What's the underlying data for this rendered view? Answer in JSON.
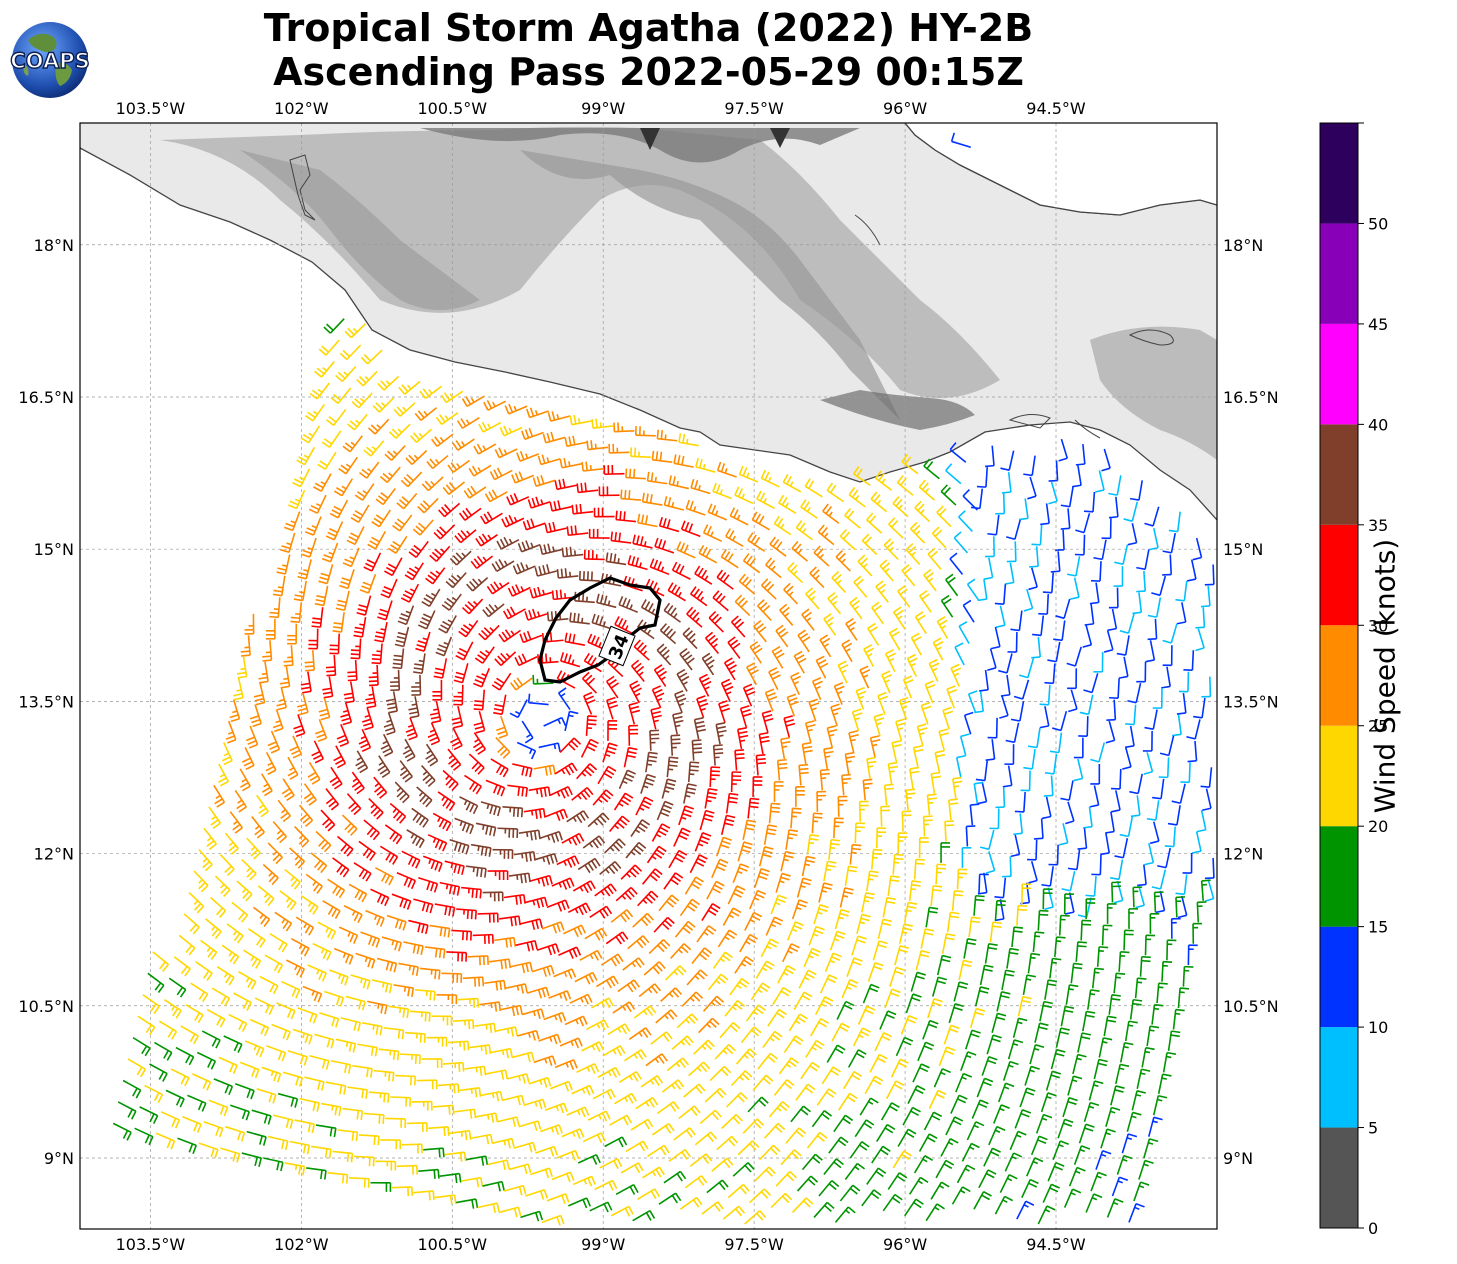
{
  "title": {
    "line1": "Tropical Storm Agatha (2022) HY-2B",
    "line2": "Ascending Pass 2022-05-29 00:15Z"
  },
  "logo": {
    "text": "COAPS"
  },
  "map": {
    "lon_range": [
      -104.2,
      -92.9
    ],
    "lat_range": [
      8.3,
      19.2
    ],
    "lon_ticks": [
      "103.5°W",
      "102°W",
      "100.5°W",
      "99°W",
      "97.5°W",
      "96°W",
      "94.5°W"
    ],
    "lon_tick_values": [
      -103.5,
      -102,
      -100.5,
      -99,
      -97.5,
      -96,
      -94.5
    ],
    "lat_ticks": [
      "9°N",
      "10.5°N",
      "12°N",
      "13.5°N",
      "15°N",
      "16.5°N",
      "18°N"
    ],
    "lat_tick_values": [
      9,
      10.5,
      12,
      13.5,
      15,
      16.5,
      18
    ],
    "grid": true,
    "storm_center": {
      "lon": -99.6,
      "lat": 13.35
    },
    "contour_label": "34"
  },
  "colorbar": {
    "label": "Wind Speed (knots)",
    "ticks": [
      "0",
      "5",
      "10",
      "15",
      "20",
      "25",
      "30",
      "35",
      "40",
      "45",
      "50"
    ],
    "tick_values": [
      0,
      5,
      10,
      15,
      20,
      25,
      30,
      35,
      40,
      45,
      50
    ],
    "max": 55,
    "bins": [
      {
        "from": 0,
        "to": 5,
        "color": "#555555"
      },
      {
        "from": 5,
        "to": 10,
        "color": "#00bfff"
      },
      {
        "from": 10,
        "to": 15,
        "color": "#0033ff"
      },
      {
        "from": 15,
        "to": 20,
        "color": "#009400"
      },
      {
        "from": 20,
        "to": 25,
        "color": "#ffd700"
      },
      {
        "from": 25,
        "to": 30,
        "color": "#ff8c00"
      },
      {
        "from": 30,
        "to": 35,
        "color": "#ff0000"
      },
      {
        "from": 35,
        "to": 40,
        "color": "#7f3f2a"
      },
      {
        "from": 40,
        "to": 45,
        "color": "#ff00ff"
      },
      {
        "from": 45,
        "to": 50,
        "color": "#8800b8"
      },
      {
        "from": 50,
        "to": 55,
        "color": "#2e005e"
      }
    ]
  }
}
